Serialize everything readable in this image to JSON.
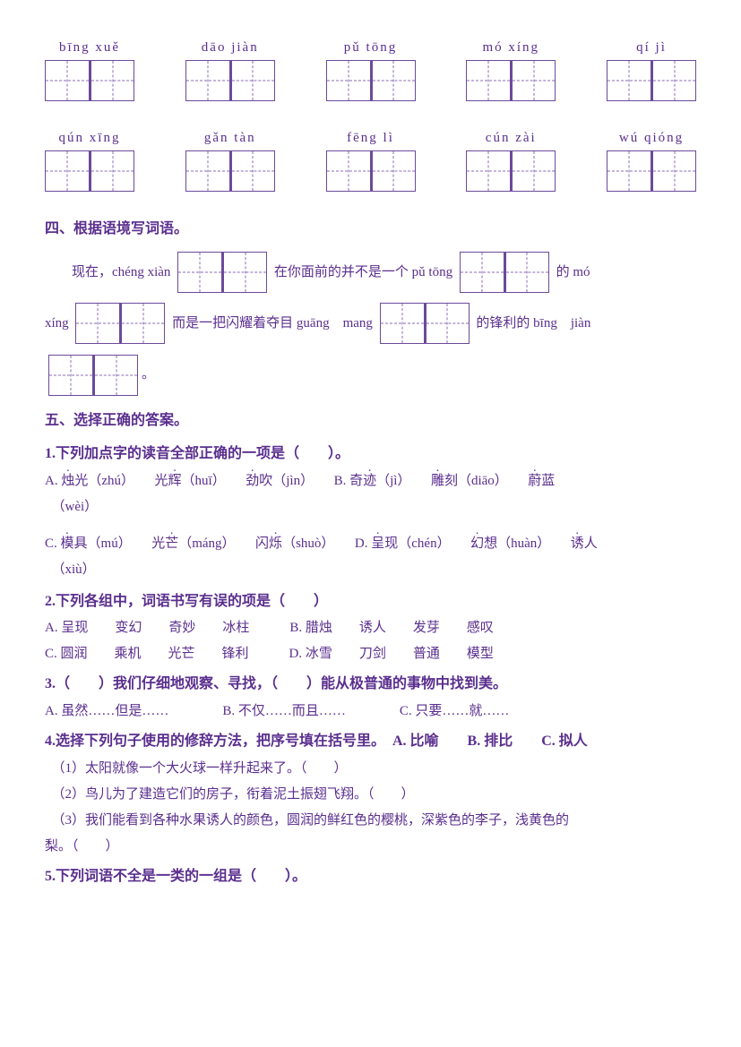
{
  "pinyin_row1": [
    {
      "text": "bīng xuě"
    },
    {
      "text": "dāo jiàn"
    },
    {
      "text": "pǔ tōng"
    },
    {
      "text": "mó xíng"
    },
    {
      "text": "qí jì"
    }
  ],
  "pinyin_row2": [
    {
      "text": "qún xīng"
    },
    {
      "text": "gǎn tàn"
    },
    {
      "text": "fēng lì"
    },
    {
      "text": "cún zài"
    },
    {
      "text": "wú qióng"
    }
  ],
  "section4": {
    "title": "四、根据语境写词语。",
    "parts": {
      "p1": "现在，chéng xiàn",
      "p2": "在你面前的并不是一个 pǔ tōng",
      "p3": "的 mó",
      "p4": "xíng",
      "p5": "而是一把闪耀着夺目 guāng　mang",
      "p6": "的锋利的 bīng　jiàn",
      "p7": "。"
    }
  },
  "section5": {
    "title": "五、选择正确的答案。",
    "q1": {
      "title": "1.下列加点字的读音全部正确的一项是（　　）。",
      "optA": [
        "A. ",
        "烛",
        "光（zhú）　　光",
        "辉",
        "（huī）　　",
        "劲",
        "吹（jìn）　　B. 奇",
        "迹",
        "（jì）　　",
        "雕",
        "刻（diāo）　　",
        "蔚",
        "蓝"
      ],
      "tailA": "（wèi）",
      "optC": [
        "C. ",
        "模",
        "具（mú）　　光",
        "芒",
        "（máng）　　闪",
        "烁",
        "（shuò）　　D. ",
        "呈",
        "现（chén）　　",
        "幻",
        "想（huàn）　　",
        "诱",
        "人"
      ],
      "tailC": "（xiù）"
    },
    "q2": {
      "title": "2.下列各组中，词语书写有误的项是（　　）",
      "a": "A. 呈现　　变幻　　奇妙　　冰柱　　　B. 腊烛　　诱人　　发芽　　感叹",
      "c": "C. 圆润　　乘机　　光芒　　锋利　　　D. 冰雪　　刀剑　　普通　　模型"
    },
    "q3": {
      "title": "3.（　　）我们仔细地观察、寻找，（　　）能从极普通的事物中找到美。",
      "opts": "A. 虽然……但是……　　　　B. 不仅……而且……　　　　C. 只要……就……"
    },
    "q4": {
      "title": "4.选择下列句子使用的修辞方法，把序号填在括号里。　A. 比喻　　B. 排比　　C. 拟人",
      "s1": "（1）太阳就像一个大火球一样升起来了。（　　）",
      "s2": "（2）鸟儿为了建造它们的房子，衔着泥土振翅飞翔。（　　）",
      "s3": "（3）我们能看到各种水果诱人的颜色，圆润的鲜红色的樱桃，深紫色的李子，浅黄色的",
      "s3b": "梨。（　　）"
    },
    "q5": {
      "title": "5.下列词语不全是一类的一组是（　　）。"
    }
  }
}
